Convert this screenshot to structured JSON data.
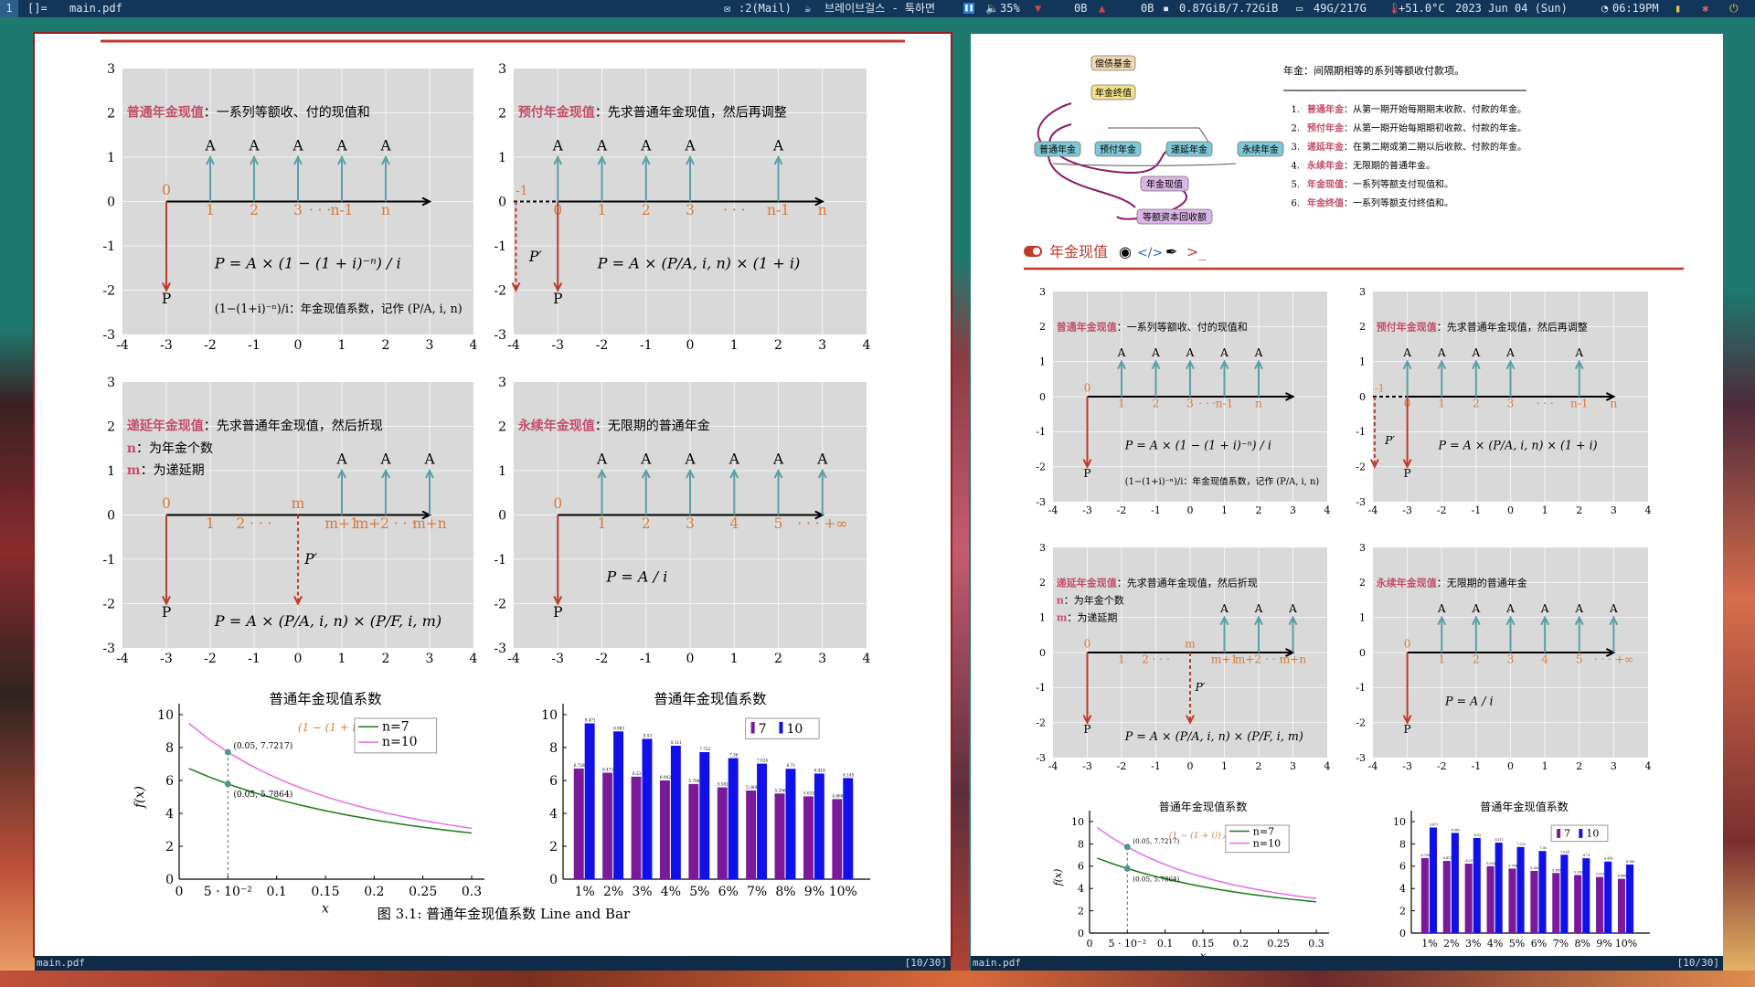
{
  "topbar": {
    "workspace": "1",
    "layout": "[]=",
    "window_title": "main.pdf",
    "mail": ":2(Mail)",
    "music": "브레이브걸스 - 툭하면",
    "volume": "35%",
    "net_down": "0B",
    "net_up": "0B",
    "memory": "0.87GiB/7.72GiB",
    "disk": "49G/217G",
    "temp": "+51.0°C",
    "date": "2023 Jun 04 (Sun)",
    "time": "06:19PM"
  },
  "status_left": {
    "file": "main.pdf",
    "page": "[10/30]"
  },
  "status_right": {
    "file": "main.pdf",
    "page": "[10/30]"
  },
  "panels": {
    "ordinary": {
      "note_key": "普通年金现值",
      "note_rest": "：一系列等额收、付的现值和",
      "formula": "P = A × (1 − (1 + i)⁻ⁿ) / i",
      "coef_note": "(1−(1+i)⁻ⁿ)/i：年金现值系数，记作 (P/A, i, n)",
      "start": "0",
      "bottom": "P",
      "labels": [
        "1",
        "2",
        "3",
        "· · ·",
        "n-1",
        "n"
      ],
      "arrow": "A"
    },
    "due": {
      "note_key": "预付年金现值",
      "note_rest": "：先求普通年金现值，然后再调整",
      "formula": "P = A × (P/A, i, n) × (1 + i)",
      "pprime": "P′",
      "start": "-1",
      "zero": "0",
      "bottom": "P",
      "labels": [
        "1",
        "2",
        "3",
        "· · ·",
        "n-1",
        "n"
      ],
      "arrow": "A"
    },
    "deferred": {
      "note_key": "递延年金现值",
      "note_rest": "：先求普通年金现值，然后折现",
      "n_key": "n",
      "n_rest": "：为年金个数",
      "m_key": "m",
      "m_rest": "：为递延期",
      "formula": "P = A × (P/A, i, n) × (P/F, i, m)",
      "pprime": "P′",
      "start": "0",
      "bottom": "P",
      "labels": [
        "1",
        "2 · · ·",
        "m",
        "m+1",
        "m+2 · · ·",
        "m+n"
      ],
      "arrow": "A"
    },
    "perpetuity": {
      "note_key": "永续年金现值",
      "note_rest": "：无限期的普通年金",
      "formula": "P = A / i",
      "start": "0",
      "bottom": "P",
      "labels": [
        "1",
        "2",
        "3",
        "4",
        "5",
        "· · · +∞"
      ],
      "arrow": "A"
    }
  },
  "grid_x_ticks": [
    "-4",
    "-3",
    "-2",
    "-1",
    "0",
    "1",
    "2",
    "3",
    "4"
  ],
  "grid_y_ticks": [
    "3",
    "2",
    "1",
    "0",
    "-1",
    "-2",
    "-3"
  ],
  "figure_caption": "图 3.1: 普通年金现值系数 Line and Bar",
  "mindmap": {
    "root": "偿债基金",
    "fv": "年金终值",
    "nodes": [
      "普通年金",
      "预付年金",
      "递延年金",
      "永续年金"
    ],
    "pv": "年金现值",
    "capital": "等额资本回收额"
  },
  "definition": {
    "title": "年金：间隔期相等的系列等额收付款项。",
    "items": [
      {
        "num": "1.",
        "key": "普通年金",
        "text": "：从第一期开始每期期末收款、付款的年金。"
      },
      {
        "num": "2.",
        "key": "预付年金",
        "text": "：从第一期开始每期期初收款、付款的年金。"
      },
      {
        "num": "3.",
        "key": "递延年金",
        "text": "：在第二期或第二期以后收款、付款的年金。"
      },
      {
        "num": "4.",
        "key": "永续年金",
        "text": "：无限期的普通年金。"
      },
      {
        "num": "5.",
        "key": "年金现值",
        "text": "：一系列等额支付现值和。"
      },
      {
        "num": "6.",
        "key": "年金终值",
        "text": "：一系列等额支付终值和。"
      }
    ]
  },
  "section": {
    "title": "年金现值"
  },
  "chart_data": [
    {
      "type": "line",
      "title": "普通年金现值系数",
      "xlabel": "x",
      "ylabel": "f(x)",
      "xlim": [
        0,
        0.3
      ],
      "ylim": [
        0,
        10
      ],
      "xticks": [
        "0",
        "5 · 10⁻²",
        "0.1",
        "0.15",
        "0.2",
        "0.25",
        "0.3"
      ],
      "yticks": [
        "0",
        "2",
        "4",
        "6",
        "8",
        "10"
      ],
      "legend_formula": "(1 − (1 + i)) / i",
      "legend": "top-right",
      "x": [
        0.01,
        0.03,
        0.05,
        0.07,
        0.09,
        0.11,
        0.13,
        0.15,
        0.17,
        0.19,
        0.21,
        0.23,
        0.25,
        0.27,
        0.29,
        0.3
      ],
      "series": [
        {
          "name": "n=7",
          "color": "#1a7a1a",
          "values": [
            6.7282,
            6.2303,
            5.7864,
            5.3893,
            5.033,
            4.7122,
            4.4226,
            4.1604,
            3.9224,
            3.7057,
            3.5079,
            3.327,
            3.1611,
            3.0087,
            2.8684,
            2.8021
          ]
        },
        {
          "name": "n=10",
          "color": "#e36ee8",
          "values": [
            9.4713,
            8.5302,
            7.7217,
            7.0236,
            6.4177,
            5.8892,
            5.4262,
            5.0188,
            4.6586,
            4.3389,
            4.054,
            3.7993,
            3.5705,
            3.3644,
            3.1781,
            3.0915
          ]
        }
      ],
      "annotations": [
        {
          "x": 0.05,
          "y": 7.7217,
          "label": "(0.05, 7.7217)"
        },
        {
          "x": 0.05,
          "y": 5.7864,
          "label": "(0.05, 5.7864)"
        }
      ]
    },
    {
      "type": "bar",
      "title": "普通年金现值系数",
      "categories": [
        "1%",
        "2%",
        "3%",
        "4%",
        "5%",
        "6%",
        "7%",
        "8%",
        "9%",
        "10%"
      ],
      "ylim": [
        0,
        10
      ],
      "yticks": [
        "0",
        "2",
        "4",
        "6",
        "8",
        "10"
      ],
      "legend": "top-right",
      "series": [
        {
          "name": "7",
          "color": "#7a1a9a",
          "values": [
            6.728,
            6.472,
            6.23,
            6.002,
            5.786,
            5.582,
            5.389,
            5.206,
            5.033,
            4.868
          ]
        },
        {
          "name": "10",
          "color": "#1010e8",
          "values": [
            9.471,
            8.983,
            8.53,
            8.111,
            7.722,
            7.36,
            7.024,
            6.71,
            6.418,
            6.145
          ]
        }
      ]
    }
  ]
}
